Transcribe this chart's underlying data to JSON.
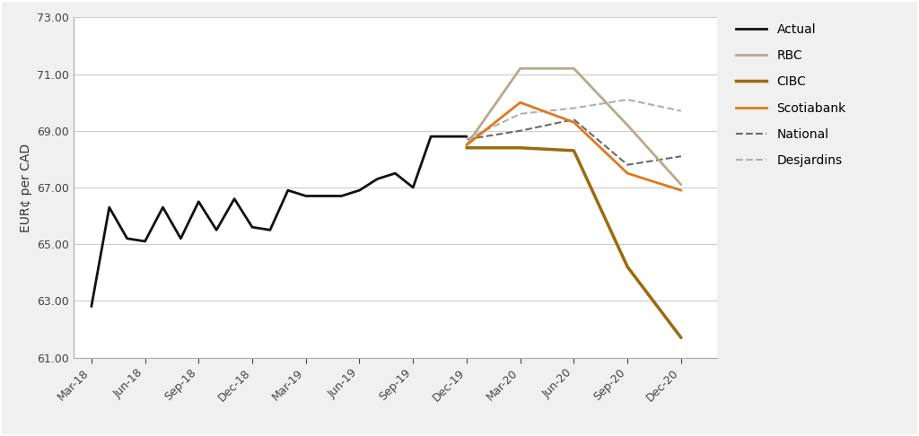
{
  "ylabel": "EUR¢ per CAD",
  "background_color": "#f0f0f0",
  "plot_background": "#ffffff",
  "ylim": [
    61.0,
    73.0
  ],
  "yticks": [
    61.0,
    63.0,
    65.0,
    67.0,
    69.0,
    71.0,
    73.0
  ],
  "xtick_labels": [
    "Mar-18",
    "Jun-18",
    "Sep-18",
    "Dec-18",
    "Mar-19",
    "Jun-19",
    "Sep-19",
    "Dec-19",
    "Mar-20",
    "Jun-20",
    "Sep-20",
    "Dec-20"
  ],
  "actual_x": [
    0,
    1,
    2,
    3,
    4,
    5,
    6,
    7,
    8,
    9,
    10,
    11,
    12,
    13,
    14,
    15,
    16,
    17,
    18,
    19,
    20,
    21
  ],
  "actual_y": [
    62.8,
    66.3,
    65.2,
    65.1,
    66.3,
    65.2,
    66.5,
    65.5,
    66.6,
    65.6,
    65.5,
    66.9,
    66.7,
    66.7,
    66.7,
    66.9,
    67.3,
    67.5,
    67.0,
    68.8,
    68.8,
    68.8
  ],
  "forecast_x": [
    21,
    24,
    27,
    30,
    33
  ],
  "forecast": {
    "RBC": {
      "y": [
        68.5,
        71.2,
        71.2,
        69.2,
        67.1
      ],
      "color": "#b8a98a",
      "linestyle": "-",
      "linewidth": 2.0
    },
    "CIBC": {
      "y": [
        68.4,
        68.4,
        68.3,
        64.2,
        61.7
      ],
      "color": "#9b6a10",
      "linestyle": "-",
      "linewidth": 2.5
    },
    "Scotiabank": {
      "y": [
        68.5,
        70.0,
        69.3,
        67.5,
        66.9
      ],
      "color": "#e07820",
      "linestyle": "-",
      "linewidth": 2.0
    },
    "National": {
      "y": [
        68.7,
        69.0,
        69.4,
        67.8,
        68.1
      ],
      "color": "#6a6a6a",
      "linestyle": "--",
      "linewidth": 1.5
    },
    "Desjardins": {
      "y": [
        68.7,
        69.6,
        69.8,
        70.1,
        69.7
      ],
      "color": "#b0b0b0",
      "linestyle": "--",
      "linewidth": 1.5
    }
  },
  "actual_color": "#111111",
  "legend_order": [
    "Actual",
    "RBC",
    "CIBC",
    "Scotiabank",
    "National",
    "Desjardins"
  ],
  "grid_color": "#cccccc",
  "tick_color": "#444444",
  "border_color": "#aaaaaa"
}
